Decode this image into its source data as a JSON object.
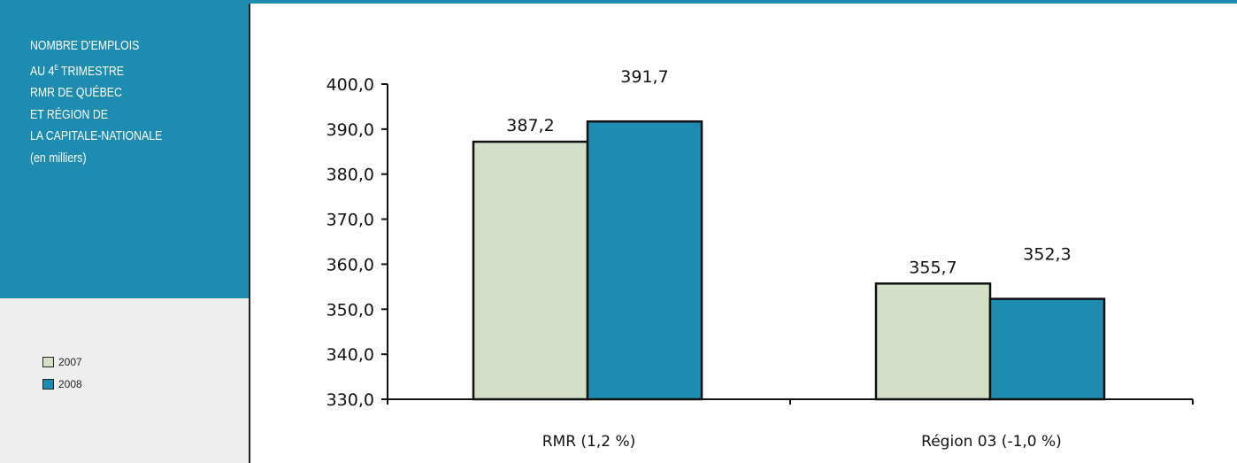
{
  "sidebar": {
    "title_lines": [
      "NOMBRE D'EMPLOIS",
      "AU 4",
      "E",
      " TRIMESTRE",
      "RMR DE QUÉBEC",
      "ET RÉGION DE",
      "LA CAPITALE-NATIONALE",
      "(en milliers)"
    ]
  },
  "colors": {
    "accent": "#1e8bb0",
    "series_2007": "#d3dfc7",
    "series_2008": "#1e8bb0",
    "legend_bg": "#eeeeee"
  },
  "chart_data": {
    "type": "bar",
    "categories": [
      "RMR (1,2 %)",
      "Région 03 (-1,0 %)"
    ],
    "series": [
      {
        "name": "2007",
        "values": [
          387.2,
          355.7
        ],
        "labels": [
          "387,2",
          "355,7"
        ]
      },
      {
        "name": "2008",
        "values": [
          391.7,
          352.3
        ],
        "labels": [
          "391,7",
          "352,3"
        ]
      }
    ],
    "ylim": [
      330,
      400
    ],
    "yticks": [
      330,
      340,
      350,
      360,
      370,
      380,
      390,
      400
    ],
    "ytick_labels": [
      "330,0",
      "340,0",
      "350,0",
      "360,0",
      "370,0",
      "380,0",
      "390,0",
      "400,0"
    ],
    "legend": [
      "2007",
      "2008"
    ],
    "legend_placement": "left-bottom",
    "grid": false
  }
}
